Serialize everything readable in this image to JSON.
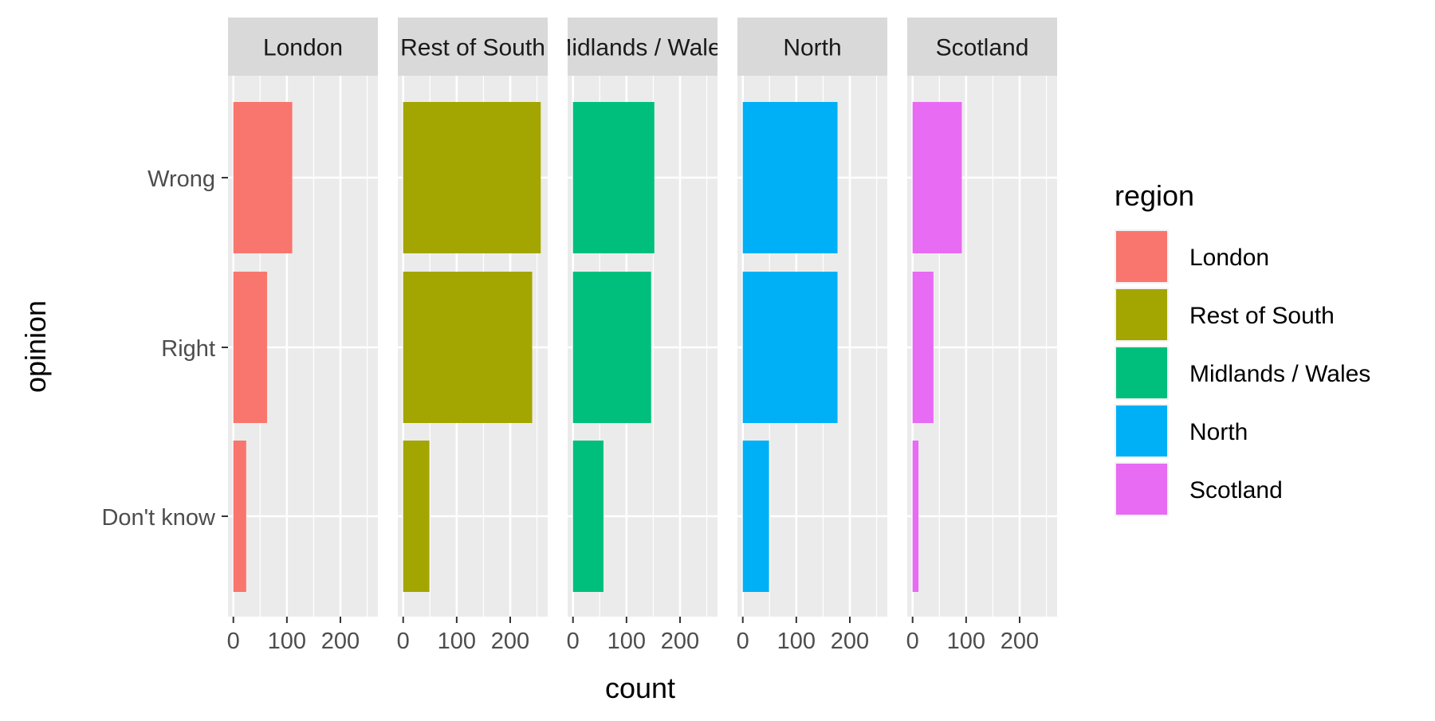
{
  "chart_data": {
    "type": "bar",
    "orientation": "horizontal",
    "xlabel": "count",
    "ylabel": "opinion",
    "categories": [
      "Wrong",
      "Right",
      "Don't know"
    ],
    "xlim": [
      -10,
      270
    ],
    "x_ticks": [
      "0",
      "100",
      "200"
    ],
    "grid": true,
    "legend_position": "right",
    "legend": {
      "title": "region",
      "entries": [
        "London",
        "Rest of South",
        "Midlands / Wales",
        "North",
        "Scotland"
      ]
    },
    "colors": {
      "London": "#F8766D",
      "Rest of South": "#A3A500",
      "Midlands / Wales": "#00BF7D",
      "North": "#00B0F6",
      "Scotland": "#E76BF3"
    },
    "panels": [
      {
        "name": "London",
        "strip_label": "London",
        "values": [
          110,
          63,
          24
        ]
      },
      {
        "name": "Rest of South",
        "strip_label": "Rest of South",
        "values": [
          257,
          241,
          49
        ]
      },
      {
        "name": "Midlands / Wales",
        "strip_label": "Midlands / Wales",
        "values": [
          152,
          146,
          57
        ]
      },
      {
        "name": "North",
        "strip_label": "North",
        "values": [
          177,
          177,
          49
        ]
      },
      {
        "name": "Scotland",
        "strip_label": "Scotland",
        "values": [
          92,
          39,
          11
        ]
      }
    ]
  }
}
